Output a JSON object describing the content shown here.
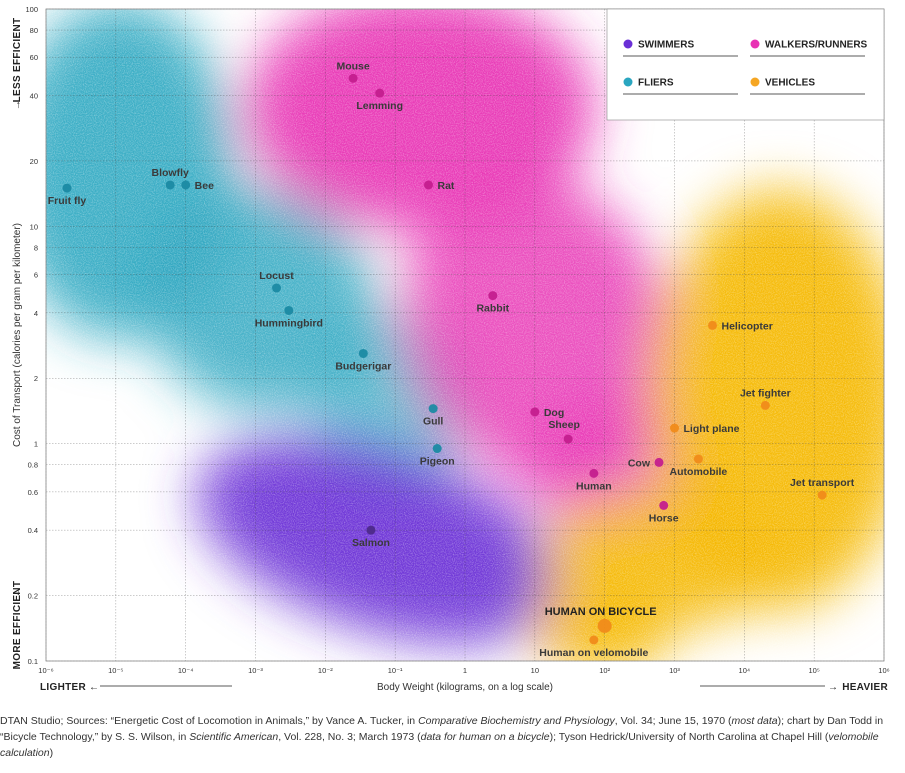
{
  "chart_data": {
    "type": "scatter",
    "xlabel": "Body Weight (kilograms, on a log scale)",
    "ylabel": "Cost of Transport (calories per gram per kilometer)",
    "x_scale": "log",
    "y_scale": "log",
    "xlim": [
      1e-06,
      1000000.0
    ],
    "ylim": [
      0.1,
      100
    ],
    "x_ticks": [
      {
        "v": 1e-06,
        "t": "10⁻⁶"
      },
      {
        "v": 1e-05,
        "t": "10⁻⁵"
      },
      {
        "v": 0.0001,
        "t": "10⁻⁴"
      },
      {
        "v": 0.001,
        "t": "10⁻³"
      },
      {
        "v": 0.01,
        "t": "10⁻²"
      },
      {
        "v": 0.1,
        "t": "10⁻¹"
      },
      {
        "v": 1,
        "t": "1"
      },
      {
        "v": 10,
        "t": "10"
      },
      {
        "v": 100,
        "t": "10²"
      },
      {
        "v": 1000,
        "t": "10³"
      },
      {
        "v": 10000,
        "t": "10⁴"
      },
      {
        "v": 100000,
        "t": "10⁵"
      },
      {
        "v": 1000000,
        "t": "10⁶"
      }
    ],
    "y_ticks": [
      {
        "v": 100,
        "t": "100"
      },
      {
        "v": 80,
        "t": "80"
      },
      {
        "v": 60,
        "t": "60"
      },
      {
        "v": 40,
        "t": "40"
      },
      {
        "v": 20,
        "t": "20"
      },
      {
        "v": 10,
        "t": "10"
      },
      {
        "v": 8,
        "t": "8"
      },
      {
        "v": 6,
        "t": "6"
      },
      {
        "v": 4,
        "t": "4"
      },
      {
        "v": 2,
        "t": "2"
      },
      {
        "v": 1,
        "t": "1"
      },
      {
        "v": 0.8,
        "t": "0.8"
      },
      {
        "v": 0.6,
        "t": "0.6"
      },
      {
        "v": 0.4,
        "t": "0.4"
      },
      {
        "v": 0.2,
        "t": "0.2"
      },
      {
        "v": 0.1,
        "t": "0.1"
      }
    ],
    "y_top_word": "LESS EFFICIENT",
    "y_bottom_word": "MORE EFFICIENT",
    "x_left_word": "LIGHTER",
    "x_right_word": "HEAVIER",
    "legend_position": "top-right",
    "categories": [
      {
        "key": "swimmers",
        "name": "SWIMMERS",
        "color": "#6a2fd6"
      },
      {
        "key": "walkers",
        "name": "WALKERS/RUNNERS",
        "color": "#e832b4"
      },
      {
        "key": "fliers",
        "name": "FLIERS",
        "color": "#2aa6c0"
      },
      {
        "key": "vehicles",
        "name": "VEHICLES",
        "color": "#f5a623"
      }
    ],
    "points": [
      {
        "label": "Fruit fly",
        "cat": "fliers",
        "x": 2e-06,
        "y": 15,
        "anchor": "below"
      },
      {
        "label": "Blowfly",
        "cat": "fliers",
        "x": 6e-05,
        "y": 15.5,
        "anchor": "above"
      },
      {
        "label": "Bee",
        "cat": "fliers",
        "x": 0.0001,
        "y": 15.5,
        "anchor": "right"
      },
      {
        "label": "Locust",
        "cat": "fliers",
        "x": 0.002,
        "y": 5.2,
        "anchor": "above"
      },
      {
        "label": "Hummingbird",
        "cat": "fliers",
        "x": 0.003,
        "y": 4.1,
        "anchor": "below"
      },
      {
        "label": "Budgerigar",
        "cat": "fliers",
        "x": 0.035,
        "y": 2.6,
        "anchor": "below"
      },
      {
        "label": "Gull",
        "cat": "fliers",
        "x": 0.35,
        "y": 1.45,
        "anchor": "below"
      },
      {
        "label": "Pigeon",
        "cat": "fliers",
        "x": 0.4,
        "y": 0.95,
        "anchor": "below"
      },
      {
        "label": "Mouse",
        "cat": "walkers",
        "x": 0.025,
        "y": 48,
        "anchor": "above"
      },
      {
        "label": "Lemming",
        "cat": "walkers",
        "x": 0.06,
        "y": 41,
        "anchor": "below"
      },
      {
        "label": "Rat",
        "cat": "walkers",
        "x": 0.3,
        "y": 15.5,
        "anchor": "right"
      },
      {
        "label": "Rabbit",
        "cat": "walkers",
        "x": 2.5,
        "y": 4.8,
        "anchor": "below"
      },
      {
        "label": "Dog",
        "cat": "walkers",
        "x": 10,
        "y": 1.4,
        "anchor": "right"
      },
      {
        "label": "Sheep",
        "cat": "walkers",
        "x": 30,
        "y": 1.05,
        "anchor": "aboveleft"
      },
      {
        "label": "Human",
        "cat": "walkers",
        "x": 70,
        "y": 0.73,
        "anchor": "below"
      },
      {
        "label": "Cow",
        "cat": "walkers",
        "x": 600,
        "y": 0.82,
        "anchor": "left"
      },
      {
        "label": "Horse",
        "cat": "walkers",
        "x": 700,
        "y": 0.52,
        "anchor": "below"
      },
      {
        "label": "Salmon",
        "cat": "swimmers",
        "x": 0.045,
        "y": 0.4,
        "anchor": "below"
      },
      {
        "label": "Helicopter",
        "cat": "vehicles",
        "x": 3500,
        "y": 3.5,
        "anchor": "right"
      },
      {
        "label": "Jet fighter",
        "cat": "vehicles",
        "x": 20000,
        "y": 1.5,
        "anchor": "above"
      },
      {
        "label": "Light plane",
        "cat": "vehicles",
        "x": 1000,
        "y": 1.18,
        "anchor": "right"
      },
      {
        "label": "Automobile",
        "cat": "vehicles",
        "x": 2200,
        "y": 0.85,
        "anchor": "below"
      },
      {
        "label": "Jet transport",
        "cat": "vehicles",
        "x": 130000,
        "y": 0.58,
        "anchor": "above"
      },
      {
        "label": "HUMAN ON BICYCLE",
        "cat": "vehicles",
        "x": 100,
        "y": 0.145,
        "anchor": "aboveleft",
        "big": true
      },
      {
        "label": "Human on velomobile",
        "cat": "vehicles",
        "x": 70,
        "y": 0.125,
        "anchor": "below"
      }
    ]
  },
  "source": {
    "part1": "DTAN Studio; Sources: “Energetic Cost of Locomotion in Animals,” by Vance A. Tucker, in ",
    "journal1": "Comparative Biochemistry and Physiology",
    "part2": ", Vol. 34; June 15, 1970 (",
    "note1": "most data",
    "part3": "); chart by Dan Todd in “Bicycle Technology,” by S. S. Wilson, in ",
    "journal2": "Scientific American",
    "part4": ", Vol. 228, No. 3; March 1973 (",
    "note2": "data for human on a bicycle",
    "part5": "); Tyson Hedrick/University of North Carolina at Chapel Hill (",
    "note3": "velomobile calculation",
    "part6": ")"
  }
}
